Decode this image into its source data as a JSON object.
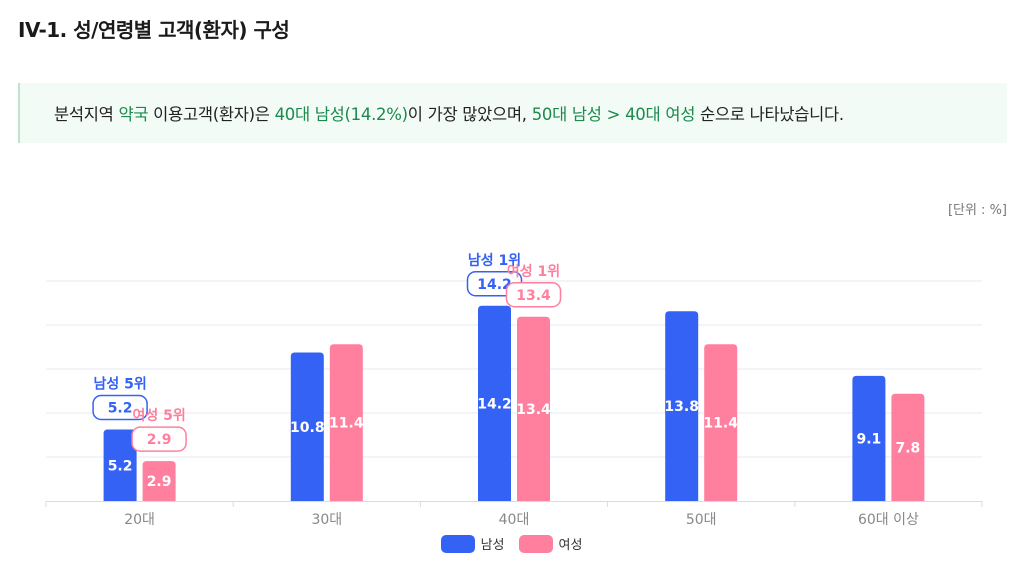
{
  "page": {
    "title": "IV-1. 성/연령별 고객(환자) 구성",
    "summary": [
      {
        "text": "분석지역 ",
        "hl": false
      },
      {
        "text": "약국",
        "hl": true
      },
      {
        "text": " 이용고객(환자)은 ",
        "hl": false
      },
      {
        "text": "40대 남성",
        "hl": true
      },
      {
        "text": "(14.2%)",
        "hl": true
      },
      {
        "text": "이 가장 많았으며, ",
        "hl": false
      },
      {
        "text": "50대 남성 > 40대 여성",
        "hl": true
      },
      {
        "text": " 순으로 나타났습니다.",
        "hl": false
      }
    ],
    "unit_label": "[단위 : %]"
  },
  "colors": {
    "male": "#3462f4",
    "female": "#ff7f9e",
    "highlight_text": "#1b8a4c"
  },
  "chart_data": {
    "type": "bar",
    "categories": [
      "20대",
      "30대",
      "40대",
      "50대",
      "60대 이상"
    ],
    "series": [
      {
        "name": "남성",
        "color": "#3462f4",
        "values": [
          5.2,
          10.8,
          14.2,
          13.8,
          9.1
        ]
      },
      {
        "name": "여성",
        "color": "#ff7f9e",
        "values": [
          2.9,
          11.4,
          13.4,
          11.4,
          7.8
        ]
      }
    ],
    "ylim": [
      0,
      16
    ],
    "grid": true,
    "legend_position": "bottom",
    "annotations": [
      {
        "series": 0,
        "category": 0,
        "label": "남성 5위",
        "value": "5.2"
      },
      {
        "series": 1,
        "category": 0,
        "label": "여성 5위",
        "value": "2.9"
      },
      {
        "series": 0,
        "category": 2,
        "label": "남성 1위",
        "value": "14.2"
      },
      {
        "series": 1,
        "category": 2,
        "label": "여성 1위",
        "value": "13.4"
      }
    ]
  }
}
